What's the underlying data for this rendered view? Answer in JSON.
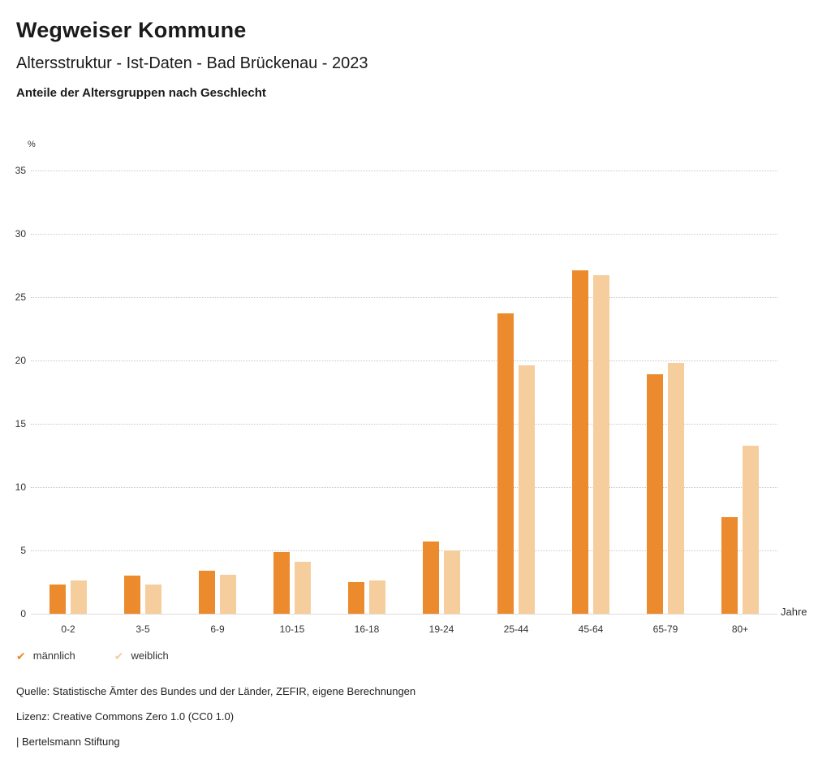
{
  "header": {
    "title": "Wegweiser Kommune",
    "subtitle": "Altersstruktur - Ist-Daten - Bad Brückenau - 2023",
    "chart_heading": "Anteile der Altersgruppen nach Geschlecht"
  },
  "chart_data": {
    "type": "bar",
    "title": "Anteile der Altersgruppen nach Geschlecht",
    "categories": [
      "0-2",
      "3-5",
      "6-9",
      "10-15",
      "16-18",
      "19-24",
      "25-44",
      "45-64",
      "65-79",
      "80+"
    ],
    "series": [
      {
        "name": "männlich",
        "color": "#EC8B2D",
        "values": [
          2.3,
          3.0,
          3.4,
          4.9,
          2.5,
          5.7,
          23.7,
          27.1,
          18.9,
          7.6
        ]
      },
      {
        "name": "weiblich",
        "color": "#F6CE9E",
        "values": [
          2.6,
          2.3,
          3.1,
          4.1,
          2.6,
          5.0,
          19.6,
          26.7,
          19.8,
          13.3
        ]
      }
    ],
    "ylabel": "%",
    "xlabel": "Jahre",
    "ylim": [
      0,
      35
    ],
    "yticks": [
      0,
      5,
      10,
      15,
      20,
      25,
      30,
      35
    ],
    "grid": true,
    "legend_position": "bottom",
    "legend_check_glyph": "✔"
  },
  "footer": {
    "source": "Quelle: Statistische Ämter des Bundes und der Länder, ZEFIR, eigene Berechnungen",
    "license": "Lizenz: Creative Commons Zero 1.0 (CC0 1.0)",
    "attribution": "| Bertelsmann Stiftung"
  }
}
